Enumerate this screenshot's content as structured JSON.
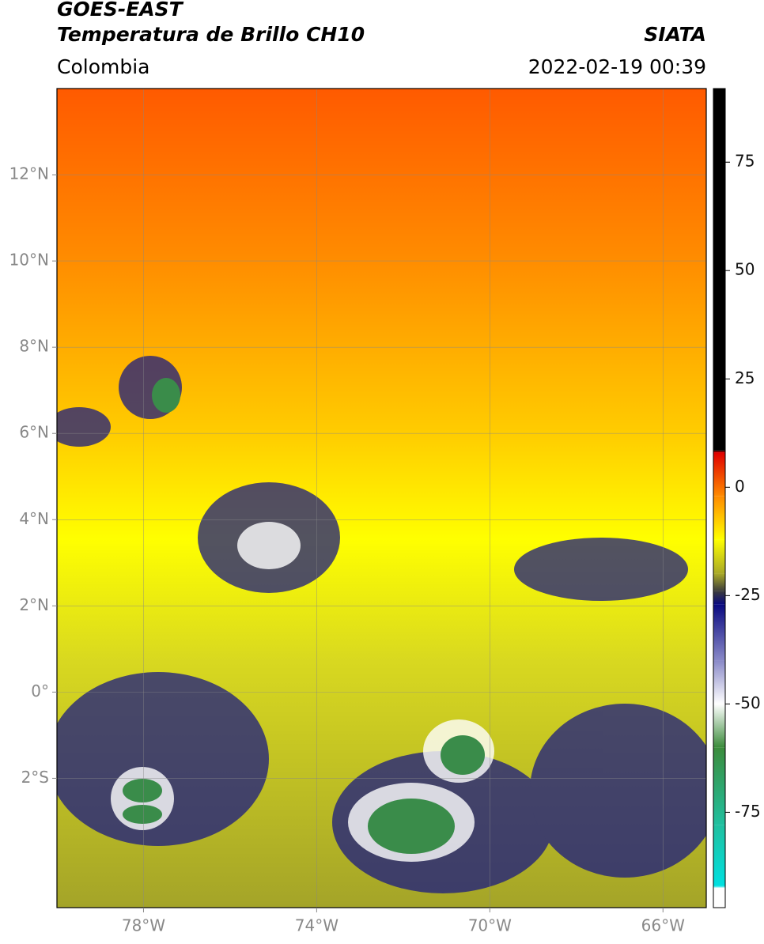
{
  "header": {
    "title_line1": "GOES-EAST",
    "title_line2": "Temperatura de Brillo CH10",
    "source": "SIATA",
    "region": "Colombia",
    "datetime": "2022-02-19 00:39"
  },
  "map": {
    "xlim": [
      -80,
      -65
    ],
    "ylim": [
      -5,
      14
    ],
    "xticks": [
      {
        "value": -78,
        "label": "78°W"
      },
      {
        "value": -74,
        "label": "74°W"
      },
      {
        "value": -70,
        "label": "70°W"
      },
      {
        "value": -66,
        "label": "66°W"
      }
    ],
    "yticks": [
      {
        "value": 12,
        "label": "12°N"
      },
      {
        "value": 10,
        "label": "10°N"
      },
      {
        "value": 8,
        "label": "8°N"
      },
      {
        "value": 6,
        "label": "6°N"
      },
      {
        "value": 4,
        "label": "4°N"
      },
      {
        "value": 2,
        "label": "2°N"
      },
      {
        "value": 0,
        "label": "0°"
      },
      {
        "value": -2,
        "label": "2°S"
      }
    ],
    "grid": true
  },
  "colorbar": {
    "lim": [
      -97,
      92
    ],
    "ticks": [
      75,
      50,
      25,
      0,
      -25,
      -50,
      -75
    ],
    "stops": [
      {
        "value": 92,
        "color": "#000000"
      },
      {
        "value": 8.5,
        "color": "#000000"
      },
      {
        "value": 8,
        "color": "#e00000"
      },
      {
        "value": -2,
        "color": "#ff8a00"
      },
      {
        "value": -12,
        "color": "#ffff00"
      },
      {
        "value": -20,
        "color": "#a8a828"
      },
      {
        "value": -24,
        "color": "#3c3c3c"
      },
      {
        "value": -27,
        "color": "#0a0a80"
      },
      {
        "value": -40,
        "color": "#8a8ac8"
      },
      {
        "value": -50,
        "color": "#ffffff"
      },
      {
        "value": -60,
        "color": "#3c8c3c"
      },
      {
        "value": -78,
        "color": "#20c0a0"
      },
      {
        "value": -92,
        "color": "#00e0e0"
      },
      {
        "value": -92.5,
        "color": "#ffffff"
      },
      {
        "value": -97,
        "color": "#ffffff"
      }
    ]
  }
}
